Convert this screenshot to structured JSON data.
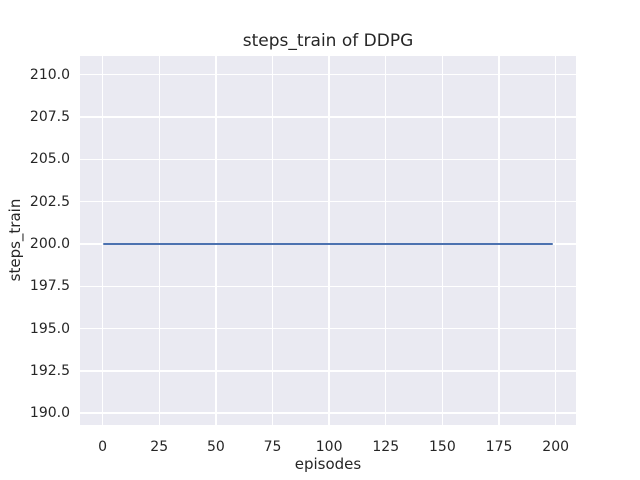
{
  "figure": {
    "background": "#ffffff",
    "plot_background": "#eaeaf2",
    "grid_color": "#ffffff",
    "text_color": "#262626"
  },
  "chart_data": {
    "type": "line",
    "title": "steps_train of DDPG",
    "xlabel": "episodes",
    "ylabel": "steps_train",
    "grid": true,
    "legend": "none",
    "xlim": [
      -9.97,
      208.97
    ],
    "ylim": [
      189.3,
      211.1
    ],
    "xticks": [
      0,
      25,
      50,
      75,
      100,
      125,
      150,
      175,
      200
    ],
    "xtick_labels": [
      "0",
      "25",
      "50",
      "75",
      "100",
      "125",
      "150",
      "175",
      "200"
    ],
    "yticks": [
      190,
      192.5,
      195,
      197.5,
      200,
      202.5,
      205,
      207.5,
      210
    ],
    "ytick_labels": [
      "190.0",
      "192.5",
      "195.0",
      "197.5",
      "200.0",
      "202.5",
      "205.0",
      "207.5",
      "210.0"
    ],
    "series": [
      {
        "name": "steps_train",
        "color": "#4c72b0",
        "x_start": 0,
        "x_end": 199,
        "y_constant": 200,
        "description": "constant value 200 for every episode from 0 to 199"
      }
    ]
  }
}
